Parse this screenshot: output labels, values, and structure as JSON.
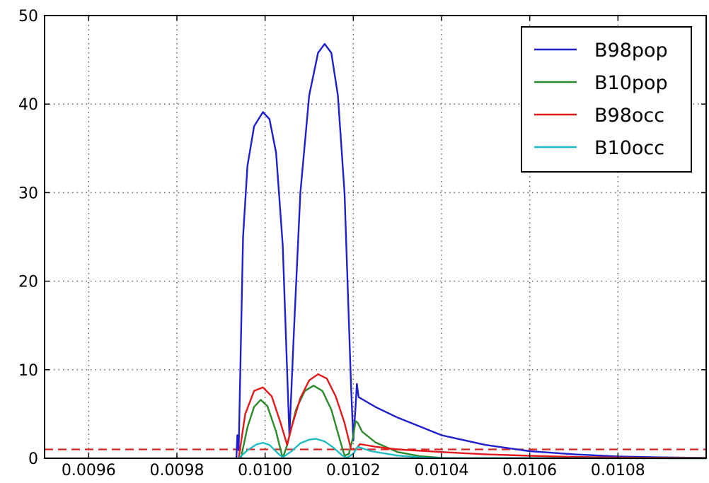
{
  "chart_data": {
    "type": "line",
    "title": "",
    "xlabel": "",
    "ylabel": "",
    "xlim": [
      0.0095,
      0.011
    ],
    "ylim": [
      0,
      50
    ],
    "xticks": [
      0.0096,
      0.0098,
      0.01,
      0.0102,
      0.0104,
      0.0106,
      0.0108
    ],
    "xtick_labels": [
      "0.0096",
      "0.0098",
      "0.0100",
      "0.0102",
      "0.0104",
      "0.0106",
      "0.0108"
    ],
    "yticks": [
      0,
      10,
      20,
      30,
      40,
      50
    ],
    "ytick_labels": [
      "0",
      "10",
      "20",
      "30",
      "40",
      "50"
    ],
    "grid": true,
    "legend_position": "top-right",
    "reference_line": {
      "y": 1,
      "color": "#d62728",
      "style": "dashed"
    },
    "series": [
      {
        "name": "B98pop",
        "color": "#1f1fd0",
        "points": [
          [
            0.009935,
            0
          ],
          [
            0.009937,
            2.6
          ],
          [
            0.00994,
            0.9
          ],
          [
            0.00995,
            25
          ],
          [
            0.00996,
            33
          ],
          [
            0.009975,
            37.5
          ],
          [
            0.009995,
            39.1
          ],
          [
            0.01001,
            38.3
          ],
          [
            0.010025,
            34.5
          ],
          [
            0.01004,
            24
          ],
          [
            0.010055,
            2.5
          ],
          [
            0.010065,
            14
          ],
          [
            0.01008,
            30
          ],
          [
            0.0101,
            41
          ],
          [
            0.01012,
            45.8
          ],
          [
            0.010135,
            46.8
          ],
          [
            0.01015,
            45.8
          ],
          [
            0.010165,
            41
          ],
          [
            0.01018,
            30
          ],
          [
            0.010195,
            8
          ],
          [
            0.0102,
            2
          ],
          [
            0.010205,
            5.8
          ],
          [
            0.010208,
            8.4
          ],
          [
            0.010212,
            6.9
          ],
          [
            0.01025,
            5.8
          ],
          [
            0.0103,
            4.6
          ],
          [
            0.0104,
            2.6
          ],
          [
            0.0105,
            1.5
          ],
          [
            0.0106,
            0.8
          ],
          [
            0.0107,
            0.45
          ],
          [
            0.0108,
            0.2
          ],
          [
            0.0109,
            0.1
          ],
          [
            0.011,
            0.05
          ]
        ]
      },
      {
        "name": "B10pop",
        "color": "#2b8a2b",
        "points": [
          [
            0.009945,
            0
          ],
          [
            0.00996,
            3.5
          ],
          [
            0.009975,
            5.8
          ],
          [
            0.00999,
            6.6
          ],
          [
            0.010005,
            5.9
          ],
          [
            0.010025,
            3.0
          ],
          [
            0.01004,
            0
          ],
          [
            0.01005,
            1.5
          ],
          [
            0.01007,
            5.5
          ],
          [
            0.01009,
            7.6
          ],
          [
            0.01011,
            8.2
          ],
          [
            0.01013,
            7.6
          ],
          [
            0.01015,
            5.5
          ],
          [
            0.01017,
            2.0
          ],
          [
            0.01018,
            0.3
          ],
          [
            0.01019,
            0.5
          ],
          [
            0.0102,
            2.5
          ],
          [
            0.010205,
            4.2
          ],
          [
            0.01021,
            4.0
          ],
          [
            0.01022,
            3.0
          ],
          [
            0.01025,
            1.8
          ],
          [
            0.0103,
            0.7
          ],
          [
            0.01035,
            0.25
          ],
          [
            0.0104,
            0.05
          ],
          [
            0.01045,
            0.01
          ],
          [
            0.011,
            0
          ]
        ]
      },
      {
        "name": "B98occ",
        "color": "#e31a1c",
        "points": [
          [
            0.00994,
            0
          ],
          [
            0.009955,
            5.0
          ],
          [
            0.009975,
            7.6
          ],
          [
            0.009995,
            8.0
          ],
          [
            0.010015,
            7.0
          ],
          [
            0.010035,
            4.0
          ],
          [
            0.01005,
            1.5
          ],
          [
            0.01006,
            3.5
          ],
          [
            0.01008,
            6.8
          ],
          [
            0.0101,
            8.8
          ],
          [
            0.01012,
            9.5
          ],
          [
            0.01014,
            9.0
          ],
          [
            0.01016,
            7.0
          ],
          [
            0.01018,
            4.0
          ],
          [
            0.010195,
            1.0
          ],
          [
            0.010205,
            1.0
          ],
          [
            0.010215,
            1.6
          ],
          [
            0.01025,
            1.3
          ],
          [
            0.0103,
            1.0
          ],
          [
            0.0104,
            0.7
          ],
          [
            0.0105,
            0.45
          ],
          [
            0.0106,
            0.28
          ],
          [
            0.0107,
            0.15
          ],
          [
            0.0108,
            0.08
          ],
          [
            0.011,
            0.03
          ]
        ]
      },
      {
        "name": "B10occ",
        "color": "#1fbcc4",
        "points": [
          [
            0.00994,
            0
          ],
          [
            0.00996,
            0.9
          ],
          [
            0.00998,
            1.55
          ],
          [
            0.009995,
            1.75
          ],
          [
            0.01001,
            1.5
          ],
          [
            0.01003,
            0.5
          ],
          [
            0.01004,
            0.1
          ],
          [
            0.01006,
            0.8
          ],
          [
            0.01008,
            1.7
          ],
          [
            0.0101,
            2.1
          ],
          [
            0.010115,
            2.2
          ],
          [
            0.010135,
            1.9
          ],
          [
            0.010155,
            1.2
          ],
          [
            0.010175,
            0.3
          ],
          [
            0.010185,
            0.05
          ],
          [
            0.0102,
            0.5
          ],
          [
            0.01021,
            1.3
          ],
          [
            0.01024,
            0.8
          ],
          [
            0.0103,
            0.3
          ],
          [
            0.01035,
            0.1
          ],
          [
            0.0104,
            0.02
          ],
          [
            0.011,
            0
          ]
        ]
      }
    ]
  }
}
